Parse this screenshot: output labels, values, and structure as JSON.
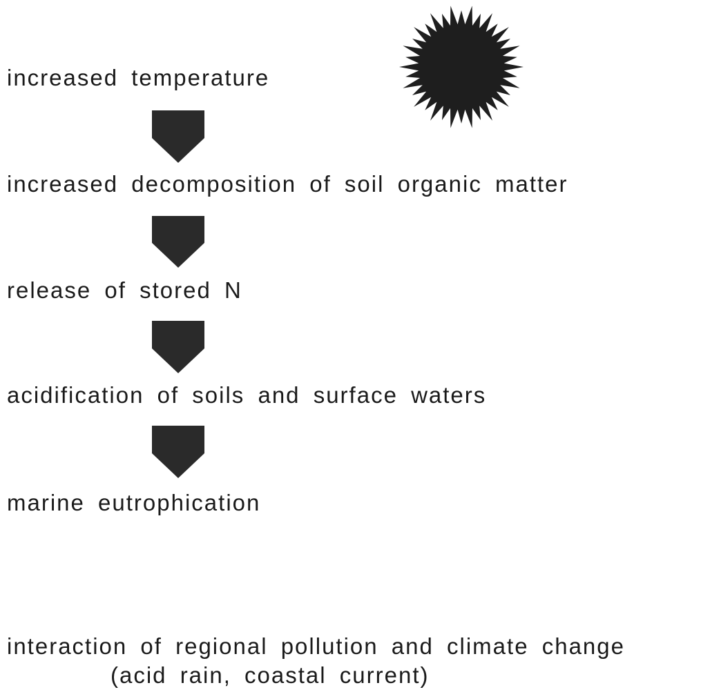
{
  "nodes": [
    {
      "label": "increased temperature"
    },
    {
      "label": "increased decomposition of soil organic matter"
    },
    {
      "label": "release of stored N"
    },
    {
      "label": "acidification of soils and surface waters"
    },
    {
      "label": "marine eutrophication"
    }
  ],
  "footer": {
    "line1": "interaction of regional pollution and climate change",
    "line2": "(acid rain, coastal current)"
  }
}
